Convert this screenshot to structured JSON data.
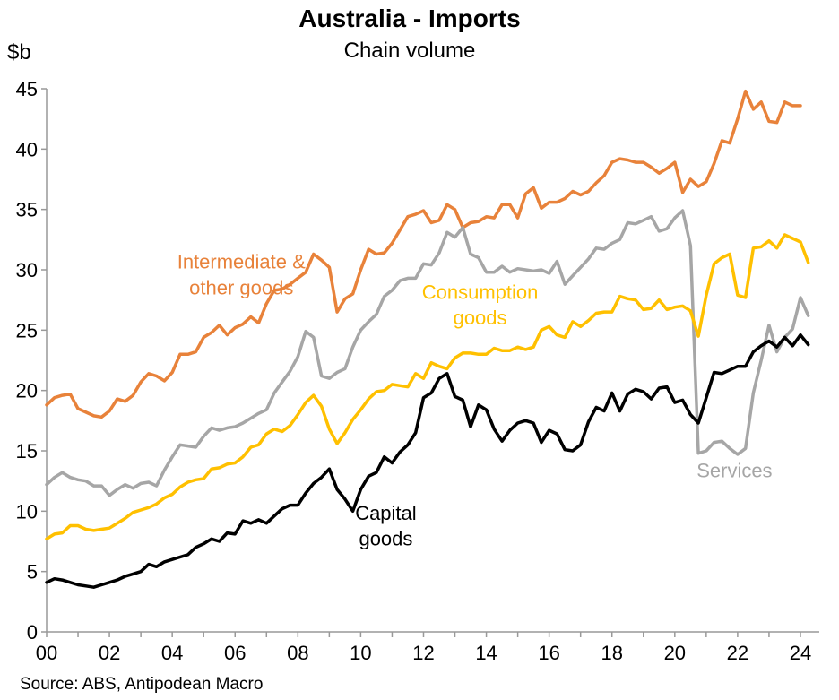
{
  "chart_data": {
    "type": "line",
    "title": "Australia - Imports",
    "subtitle": "Chain volume",
    "ylabel": "$b",
    "ylim": [
      0,
      45
    ],
    "yticks": [
      0,
      5,
      10,
      15,
      20,
      25,
      30,
      35,
      40,
      45
    ],
    "xlim": [
      2000,
      2024.6
    ],
    "xticks": [
      {
        "value": 2000,
        "label": "00"
      },
      {
        "value": 2002,
        "label": "02"
      },
      {
        "value": 2004,
        "label": "04"
      },
      {
        "value": 2006,
        "label": "06"
      },
      {
        "value": 2008,
        "label": "08"
      },
      {
        "value": 2010,
        "label": "10"
      },
      {
        "value": 2012,
        "label": "12"
      },
      {
        "value": 2014,
        "label": "14"
      },
      {
        "value": 2016,
        "label": "16"
      },
      {
        "value": 2018,
        "label": "18"
      },
      {
        "value": 2020,
        "label": "20"
      },
      {
        "value": 2022,
        "label": "22"
      },
      {
        "value": 2024,
        "label": "24"
      }
    ],
    "x_start": 2000.0,
    "x_step": 0.25,
    "grid": false,
    "series": [
      {
        "name": "Intermediate & other goods",
        "color": "#E8823A",
        "values": [
          18.8,
          19.4,
          19.6,
          19.7,
          18.5,
          18.2,
          17.9,
          17.8,
          18.3,
          19.3,
          19.1,
          19.6,
          20.7,
          21.4,
          21.2,
          20.8,
          21.5,
          23.0,
          23.0,
          23.2,
          24.4,
          24.8,
          25.4,
          24.6,
          25.2,
          25.5,
          26.1,
          25.6,
          27.2,
          28.3,
          28.4,
          28.8,
          29.3,
          29.8,
          31.3,
          30.8,
          30.2,
          26.5,
          27.6,
          28.0,
          30.0,
          31.7,
          31.3,
          31.4,
          32.2,
          33.3,
          34.4,
          34.6,
          34.9,
          33.9,
          34.1,
          35.4,
          35.0,
          33.5,
          33.9,
          34.0,
          34.4,
          34.3,
          35.4,
          35.4,
          34.3,
          36.3,
          36.8,
          35.1,
          35.6,
          35.6,
          35.9,
          36.5,
          36.2,
          36.5,
          37.2,
          37.8,
          38.9,
          39.2,
          39.1,
          38.9,
          38.9,
          38.5,
          38.0,
          38.4,
          38.9,
          36.4,
          37.5,
          36.9,
          37.3,
          38.8,
          40.7,
          40.5,
          42.5,
          44.8,
          43.3,
          43.9,
          42.3,
          42.2,
          43.9,
          43.6,
          43.6
        ]
      },
      {
        "name": "Services",
        "color": "#A6A6A6",
        "values": [
          12.2,
          12.8,
          13.2,
          12.8,
          12.6,
          12.5,
          12.1,
          12.1,
          11.3,
          11.8,
          12.2,
          11.9,
          12.3,
          12.4,
          12.1,
          13.4,
          14.5,
          15.5,
          15.4,
          15.3,
          16.2,
          16.9,
          16.7,
          16.9,
          17.0,
          17.3,
          17.7,
          18.1,
          18.4,
          19.8,
          20.7,
          21.6,
          22.8,
          24.9,
          24.4,
          21.2,
          21.0,
          21.5,
          21.8,
          23.6,
          25.0,
          25.7,
          26.3,
          27.8,
          28.3,
          29.1,
          29.3,
          29.3,
          30.5,
          30.4,
          31.4,
          33.1,
          32.7,
          33.5,
          31.3,
          31.0,
          29.8,
          29.8,
          30.3,
          29.8,
          30.1,
          30.0,
          29.9,
          30.0,
          29.7,
          30.7,
          28.8,
          29.5,
          30.2,
          30.9,
          31.8,
          31.7,
          32.2,
          32.5,
          33.9,
          33.8,
          34.1,
          34.4,
          33.2,
          33.4,
          34.3,
          34.9,
          32.0,
          14.8,
          15.0,
          15.7,
          15.8,
          15.2,
          14.7,
          15.2,
          19.8,
          22.5,
          25.4,
          23.2,
          24.4,
          25.1,
          27.7,
          26.2
        ]
      },
      {
        "name": "Consumption goods",
        "color": "#FFC000",
        "values": [
          7.7,
          8.1,
          8.2,
          8.8,
          8.8,
          8.5,
          8.4,
          8.5,
          8.6,
          9.0,
          9.4,
          9.9,
          10.1,
          10.3,
          10.6,
          11.1,
          11.4,
          12.0,
          12.4,
          12.6,
          12.7,
          13.5,
          13.6,
          13.9,
          14.0,
          14.5,
          15.3,
          15.5,
          16.4,
          16.8,
          16.6,
          17.1,
          18.0,
          19.0,
          19.6,
          18.7,
          16.8,
          15.6,
          16.5,
          17.6,
          18.4,
          19.3,
          19.9,
          20.0,
          20.5,
          20.4,
          20.3,
          21.4,
          21.0,
          22.3,
          22.0,
          21.8,
          22.7,
          23.1,
          23.1,
          23.0,
          23.0,
          23.5,
          23.3,
          23.3,
          23.6,
          23.4,
          23.6,
          25.0,
          25.3,
          24.6,
          24.4,
          25.7,
          25.3,
          25.8,
          26.4,
          26.5,
          26.5,
          27.8,
          27.6,
          27.5,
          26.7,
          26.8,
          27.5,
          26.7,
          26.9,
          27.0,
          26.6,
          24.5,
          27.9,
          30.5,
          31.0,
          31.3,
          27.9,
          27.7,
          31.8,
          31.9,
          32.4,
          31.8,
          32.9,
          32.6,
          32.3,
          30.6
        ]
      },
      {
        "name": "Capital goods",
        "color": "#000000",
        "values": [
          4.1,
          4.4,
          4.3,
          4.1,
          3.9,
          3.8,
          3.7,
          3.9,
          4.1,
          4.3,
          4.6,
          4.8,
          5.0,
          5.6,
          5.4,
          5.8,
          6.0,
          6.2,
          6.4,
          7.0,
          7.3,
          7.7,
          7.5,
          8.2,
          8.1,
          9.2,
          9.0,
          9.3,
          9.0,
          9.6,
          10.2,
          10.5,
          10.5,
          11.5,
          12.3,
          12.8,
          13.5,
          11.8,
          11.0,
          10.0,
          11.8,
          12.9,
          13.2,
          14.5,
          14.0,
          14.9,
          15.5,
          16.5,
          19.4,
          19.8,
          21.0,
          21.4,
          19.5,
          19.2,
          17.0,
          18.8,
          18.4,
          16.8,
          15.8,
          16.7,
          17.3,
          17.5,
          17.3,
          15.7,
          16.7,
          16.4,
          15.1,
          15.0,
          15.5,
          17.4,
          18.6,
          18.3,
          19.8,
          18.3,
          19.7,
          20.1,
          19.9,
          19.3,
          20.2,
          20.3,
          19.0,
          19.2,
          18.0,
          17.3,
          19.4,
          21.5,
          21.4,
          21.7,
          22.0,
          22.0,
          23.2,
          23.7,
          24.1,
          23.6,
          24.4,
          23.7,
          24.6,
          23.8
        ]
      }
    ],
    "annotations": [
      {
        "series": "Intermediate & other goods",
        "lines": [
          "Intermediate &",
          "other goods"
        ],
        "color": "#E8823A",
        "x": 2006.2,
        "y": 30.1
      },
      {
        "series": "Consumption goods",
        "lines": [
          "Consumption",
          "goods"
        ],
        "color": "#FFC000",
        "x": 2013.8,
        "y": 27.6
      },
      {
        "series": "Capital goods",
        "lines": [
          "Capital",
          "goods"
        ],
        "color": "#000000",
        "x": 2010.8,
        "y": 9.3
      },
      {
        "series": "Services",
        "lines": [
          "Services"
        ],
        "color": "#A6A6A6",
        "x": 2021.9,
        "y": 12.8
      }
    ],
    "source": "Source: ABS, Antipodean Macro"
  }
}
